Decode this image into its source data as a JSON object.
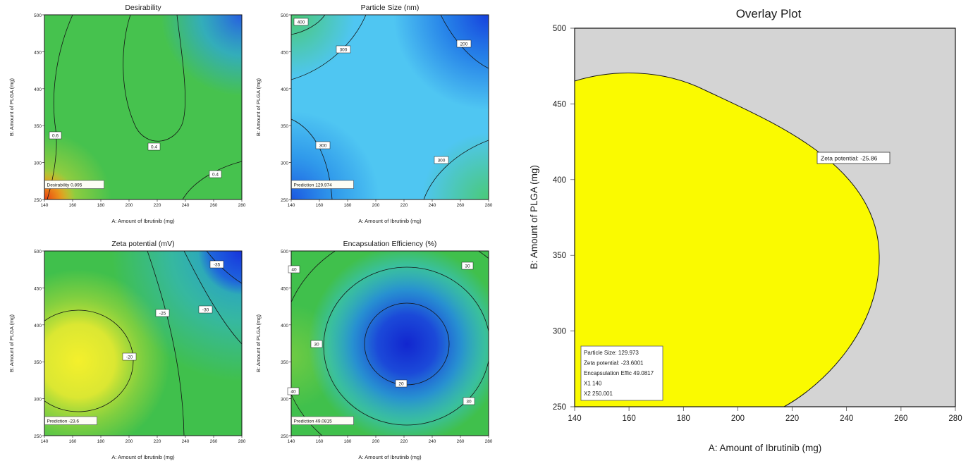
{
  "app": {
    "background": "#ffffff"
  },
  "chart_data": [
    {
      "id": "desirability",
      "type": "contour",
      "title": "Desirability",
      "xlabel": "A: Amount of Ibrutinib (mg)",
      "ylabel": "B: Amount of PLGA (mg)",
      "xlim": [
        140,
        280
      ],
      "ylim": [
        250,
        500
      ],
      "xticks": [
        "140",
        "160",
        "180",
        "200",
        "220",
        "240",
        "260",
        "280"
      ],
      "yticks": [
        "500",
        "450",
        "400",
        "350",
        "300",
        "250"
      ],
      "contour_labels": [
        "0.6",
        "0.4",
        "0.4"
      ],
      "annotation": "Desirability  0.895",
      "colormap": "blue(low)-green-yellow-red(high)",
      "hotspot": "high desirability (red/orange) at bottom-left corner (X1=140, X2=250)",
      "grid": false,
      "legend": false
    },
    {
      "id": "particle-size",
      "type": "contour",
      "title": "Particle Size (nm)",
      "xlabel": "A: Amount of Ibrutinib (mg)",
      "ylabel": "B: Amount of PLGA (mg)",
      "xlim": [
        140,
        280
      ],
      "ylim": [
        250,
        500
      ],
      "xticks": [
        "140",
        "160",
        "180",
        "200",
        "220",
        "240",
        "260",
        "280"
      ],
      "yticks": [
        "500",
        "450",
        "400",
        "350",
        "300",
        "250"
      ],
      "contour_labels": [
        "400",
        "300",
        "200",
        "300",
        "300"
      ],
      "annotation": "Prediction  129.974",
      "colormap": "blue(low)-green(high)",
      "hotspot": "low particle size (dark blue) at bottom-left and top-right corners",
      "grid": false,
      "legend": false
    },
    {
      "id": "zeta-potential",
      "type": "contour",
      "title": "Zeta potential (mV)",
      "xlabel": "A: Amount of Ibrutinib (mg)",
      "ylabel": "B: Amount of PLGA (mg)",
      "xlim": [
        140,
        280
      ],
      "ylim": [
        250,
        500
      ],
      "xticks": [
        "140",
        "160",
        "180",
        "200",
        "220",
        "240",
        "260",
        "280"
      ],
      "yticks": [
        "500",
        "450",
        "400",
        "350",
        "300",
        "250"
      ],
      "contour_labels": [
        "-35",
        "-25",
        "-30",
        "-20"
      ],
      "annotation": "Prediction  -23.6",
      "colormap": "blue(-35)-green-yellow(-20)",
      "hotspot": "yellow maximum (-20) at center-left, dark blue (-35) at top-right corner",
      "grid": false,
      "legend": false
    },
    {
      "id": "encapsulation-efficiency",
      "type": "contour",
      "title": "Encapsulation Efficiency (%)",
      "xlabel": "A: Amount of Ibrutinib (mg)",
      "ylabel": "B: Amount of PLGA (mg)",
      "xlim": [
        140,
        280
      ],
      "ylim": [
        250,
        500
      ],
      "xticks": [
        "140",
        "160",
        "180",
        "200",
        "220",
        "240",
        "260",
        "280"
      ],
      "yticks": [
        "500",
        "450",
        "400",
        "350",
        "300",
        "250"
      ],
      "contour_labels": [
        "40",
        "30",
        "30",
        "20",
        "40",
        "30"
      ],
      "annotation": "Prediction  49.0815",
      "colormap": "blue(20 low)-green(40+ high)",
      "hotspot": "dark blue minimum (20) ellipse at center, green (40) toward edges",
      "grid": false,
      "legend": false
    },
    {
      "id": "overlay",
      "type": "contour-overlay",
      "title": "Overlay Plot",
      "xlabel": "A: Amount of Ibrutinib (mg)",
      "ylabel": "B: Amount of PLGA (mg)",
      "xlim": [
        140,
        280
      ],
      "ylim": [
        250,
        500
      ],
      "xticks": [
        "140",
        "160",
        "180",
        "200",
        "220",
        "240",
        "260",
        "280"
      ],
      "yticks": [
        "500",
        "450",
        "400",
        "350",
        "300",
        "250"
      ],
      "region_label": "Zeta potential: -25.86",
      "flag_lines": [
        "Particle Size:  129.973",
        "Zeta potential:  -23.6001",
        "Encapsulation Effic  49.0817",
        "X1  140",
        "X2  250.001"
      ],
      "region_color": "#fafa00",
      "background_color": "#d4d4d4",
      "region_extent": "yellow feasible region attached to left edge, from y=250 up to about y=470, bulging right to about x=252 at y=350"
    }
  ]
}
